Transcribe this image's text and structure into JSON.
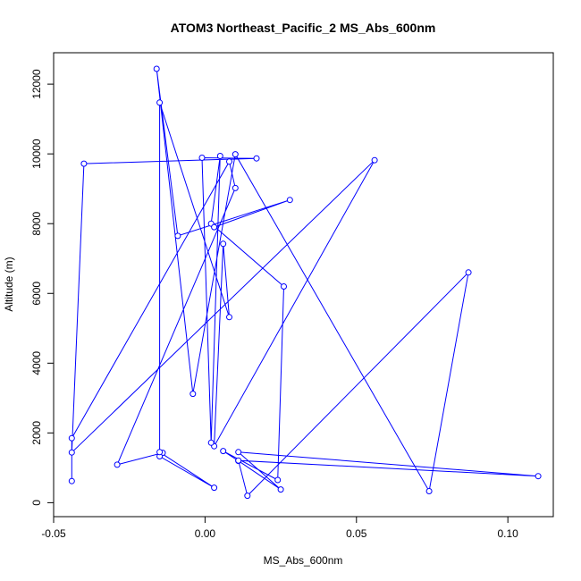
{
  "chart_data": {
    "type": "line",
    "title": "ATOM3 Northeast_Pacific_2 MS_Abs_600nm",
    "xlabel": "MS_Abs_600nm",
    "ylabel": "Altitude (m)",
    "xlim": [
      -0.05,
      0.115
    ],
    "ylim": [
      -400,
      12900
    ],
    "x_ticks": [
      -0.05,
      0.0,
      0.05,
      0.1
    ],
    "x_tick_labels": [
      "-0.05",
      "0.00",
      "0.05",
      "0.10"
    ],
    "y_ticks": [
      0,
      2000,
      4000,
      6000,
      8000,
      10000,
      12000
    ],
    "y_tick_labels": [
      "0",
      "2000",
      "4000",
      "6000",
      "8000",
      "10000",
      "12000"
    ],
    "grid": false,
    "legend": "none",
    "series": [
      {
        "color": "#0000ff",
        "marker": "open-circle",
        "points": [
          [
            -0.044,
            620
          ],
          [
            -0.044,
            1850
          ],
          [
            0.008,
            9780
          ],
          [
            0.01,
            9020
          ],
          [
            -0.029,
            1090
          ],
          [
            -0.014,
            1430
          ],
          [
            -0.015,
            1330
          ],
          [
            0.003,
            430
          ],
          [
            -0.015,
            1450
          ],
          [
            -0.015,
            11470
          ],
          [
            0.008,
            5320
          ],
          [
            0.006,
            7420
          ],
          [
            0.003,
            1620
          ],
          [
            0.056,
            9820
          ],
          [
            -0.044,
            1440
          ],
          [
            -0.04,
            9720
          ],
          [
            0.017,
            9870
          ],
          [
            -0.001,
            9890
          ],
          [
            0.002,
            1720
          ],
          [
            0.005,
            9940
          ],
          [
            0.002,
            8000
          ],
          [
            0.026,
            6200
          ],
          [
            0.024,
            650
          ],
          [
            0.006,
            1480
          ],
          [
            0.011,
            1200
          ],
          [
            0.025,
            380
          ],
          [
            0.011,
            1450
          ],
          [
            0.11,
            760
          ],
          [
            0.011,
            1210
          ],
          [
            0.014,
            200
          ],
          [
            0.087,
            6600
          ],
          [
            0.074,
            330
          ],
          [
            0.01,
            9990
          ],
          [
            -0.004,
            3120
          ],
          [
            -0.016,
            12440
          ],
          [
            -0.009,
            7650
          ],
          [
            0.028,
            8680
          ],
          [
            0.003,
            7900
          ]
        ]
      }
    ]
  }
}
